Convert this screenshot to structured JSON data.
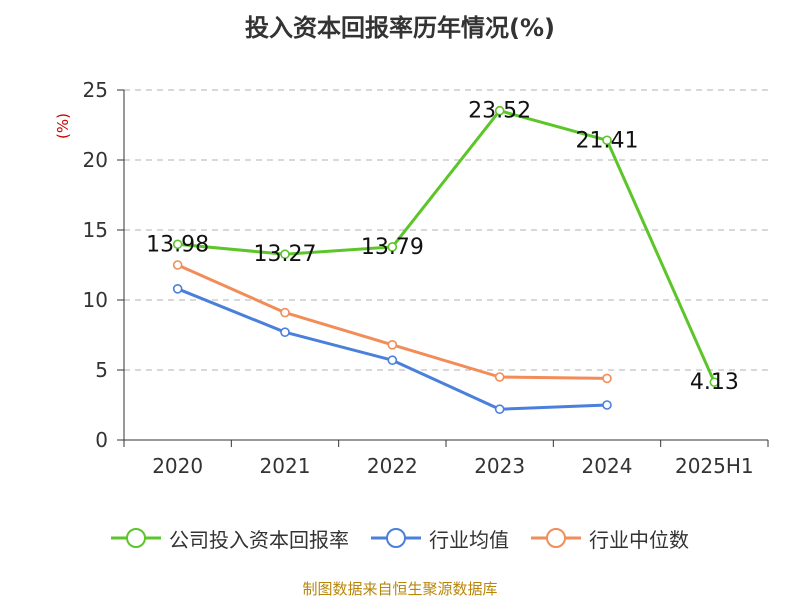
{
  "title": "投入资本回报率历年情况(%)",
  "source": "制图数据来自恒生聚源数据库",
  "chart_data": {
    "type": "line",
    "title": "投入资本回报率历年情况(%)",
    "ylabel": "(%)",
    "categories": [
      "2020",
      "2021",
      "2022",
      "2023",
      "2024",
      "2025H1"
    ],
    "ylim": [
      0,
      25
    ],
    "yticks": [
      0,
      5,
      10,
      15,
      20,
      25
    ],
    "grid": true,
    "legend_position": "bottom",
    "series": [
      {
        "name": "公司投入资本回报率",
        "color": "#5cc52a",
        "values": [
          13.98,
          13.27,
          13.79,
          23.52,
          21.41,
          4.13
        ],
        "labels": [
          "13.98",
          "13.27",
          "13.79",
          "23.52",
          "21.41",
          "4.13"
        ]
      },
      {
        "name": "行业均值",
        "color": "#4a7fdc",
        "values": [
          10.8,
          7.7,
          5.7,
          2.2,
          2.5,
          null
        ]
      },
      {
        "name": "行业中位数",
        "color": "#f28c58",
        "values": [
          12.5,
          9.1,
          6.8,
          4.5,
          4.4,
          null
        ]
      }
    ]
  }
}
